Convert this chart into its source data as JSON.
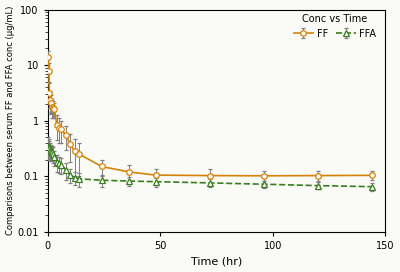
{
  "title": "Conc vs Time",
  "xlabel": "Time (hr)",
  "ylabel": "Comparisons between serum FF and FFA conc (μg/mL)",
  "xlim": [
    0,
    150
  ],
  "ylim": [
    0.01,
    100
  ],
  "ff_time": [
    0.25,
    0.5,
    0.75,
    1.0,
    1.5,
    2.0,
    2.5,
    3.0,
    4.0,
    5.0,
    6.0,
    8.0,
    10.0,
    12.0,
    14.0,
    24.0,
    36.0,
    48.0,
    72.0,
    96.0,
    120.0,
    144.0
  ],
  "ff_mean": [
    14.0,
    8.0,
    3.2,
    2.4,
    2.1,
    1.8,
    1.7,
    1.6,
    0.85,
    0.75,
    0.7,
    0.55,
    0.38,
    0.28,
    0.25,
    0.15,
    0.12,
    0.105,
    0.103,
    0.102,
    0.103,
    0.104
  ],
  "ff_err": [
    4.0,
    3.0,
    1.5,
    1.0,
    0.8,
    0.7,
    0.6,
    0.5,
    0.4,
    0.35,
    0.3,
    0.25,
    0.2,
    0.18,
    0.15,
    0.05,
    0.04,
    0.03,
    0.03,
    0.02,
    0.02,
    0.02
  ],
  "ffa_time": [
    0.25,
    0.5,
    0.75,
    1.0,
    1.5,
    2.0,
    2.5,
    3.0,
    4.0,
    5.0,
    6.0,
    8.0,
    10.0,
    12.0,
    14.0,
    24.0,
    36.0,
    48.0,
    72.0,
    96.0,
    120.0,
    144.0
  ],
  "ffa_mean": [
    0.35,
    0.35,
    0.32,
    0.3,
    0.28,
    0.27,
    0.25,
    0.22,
    0.18,
    0.17,
    0.16,
    0.13,
    0.105,
    0.095,
    0.09,
    0.085,
    0.082,
    0.08,
    0.076,
    0.072,
    0.068,
    0.065
  ],
  "ffa_err": [
    0.15,
    0.12,
    0.12,
    0.1,
    0.09,
    0.08,
    0.08,
    0.07,
    0.06,
    0.055,
    0.05,
    0.045,
    0.03,
    0.025,
    0.025,
    0.02,
    0.015,
    0.015,
    0.012,
    0.01,
    0.01,
    0.01
  ],
  "ff_color": "#D4820A",
  "ffa_color": "#3A7D20",
  "ff_marker": "o",
  "ffa_marker": "^",
  "bg_color": "#FAFAF7",
  "xticks": [
    0,
    50,
    100,
    150
  ],
  "yticks": [
    0.01,
    0.1,
    1,
    10,
    100
  ],
  "ytick_labels": [
    "0.01",
    "0.1",
    "1",
    "10",
    "100"
  ]
}
